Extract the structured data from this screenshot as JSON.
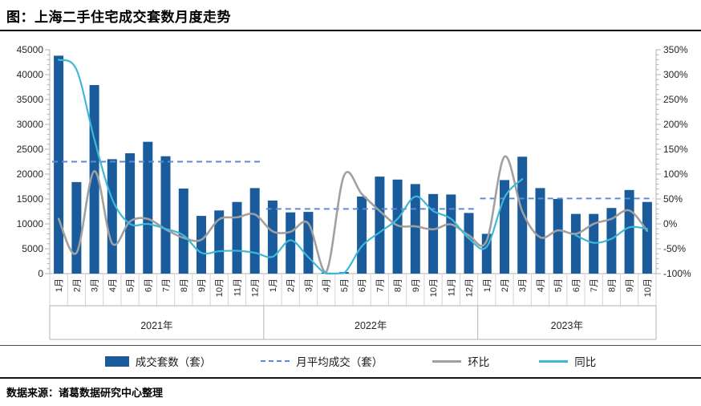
{
  "title": "图：上海二手住宅成交套数月度走势",
  "source": "数据来源：诸葛数据研究中心整理",
  "colors": {
    "bar": "#1a5b9c",
    "avg_dash": "#5b8ad9",
    "mom_line": "#a0a0a0",
    "yoy_line": "#3fb8d8",
    "axis": "#b3b3b3",
    "divider": "#d4d4d4",
    "tick_text": "#262626"
  },
  "chart_data": {
    "type": "bar+line combo",
    "left_axis": {
      "min": 0,
      "max": 45000,
      "step": 5000,
      "minor_step": 1000,
      "tick_labels": [
        "0",
        "5000",
        "10000",
        "15000",
        "20000",
        "25000",
        "30000",
        "35000",
        "40000",
        "45000"
      ]
    },
    "right_axis": {
      "min": -100,
      "max": 350,
      "step": 50,
      "minor_step": 10,
      "tick_labels": [
        "-100%",
        "-50%",
        "0%",
        "50%",
        "100%",
        "150%",
        "200%",
        "250%",
        "300%",
        "350%"
      ]
    },
    "series": {
      "bars": {
        "name": "成交套数（套）",
        "color": "#1a5b9c"
      },
      "avg": {
        "name": "月平均成交（套）",
        "color": "#5b8ad9",
        "style": "dashed"
      },
      "mom": {
        "name": "环比",
        "color": "#a0a0a0"
      },
      "yoy": {
        "name": "同比",
        "color": "#3fb8d8"
      }
    },
    "groups": [
      {
        "year": "2021年",
        "months": [
          "1月",
          "2月",
          "3月",
          "4月",
          "5月",
          "6月",
          "7月",
          "8月",
          "9月",
          "10月",
          "11月",
          "12月"
        ],
        "volume": [
          43800,
          18400,
          37900,
          23000,
          24200,
          26500,
          23600,
          17100,
          11600,
          12700,
          14400,
          17200
        ],
        "monthly_avg": 22500,
        "mom_pct": [
          10,
          -58,
          106,
          -39,
          5,
          10,
          -11,
          -28,
          -32,
          9,
          13,
          19
        ],
        "yoy_pct": [
          330,
          310,
          170,
          50,
          0,
          0,
          -10,
          -23,
          -58,
          -55,
          -54,
          -58
        ]
      },
      {
        "year": "2022年",
        "months": [
          "1月",
          "2月",
          "3月",
          "4月",
          "5月",
          "6月",
          "7月",
          "8月",
          "9月",
          "10月",
          "11月",
          "12月"
        ],
        "volume": [
          14700,
          12300,
          12400,
          200,
          300,
          15500,
          19500,
          18900,
          18000,
          16000,
          15900,
          12200
        ],
        "monthly_avg": 13000,
        "mom_pct": [
          -15,
          -16,
          1,
          -97,
          97,
          60,
          26,
          -3,
          -5,
          -11,
          -1,
          -23
        ],
        "yoy_pct": [
          -66,
          -33,
          -67,
          -100,
          -99,
          -45,
          -17,
          10,
          55,
          26,
          10,
          -29
        ]
      },
      {
        "year": "2023年",
        "months": [
          "1月",
          "2月",
          "3月",
          "4月",
          "5月",
          "6月",
          "7月",
          "8月",
          "9月",
          "10月"
        ],
        "volume": [
          8000,
          18800,
          23500,
          17200,
          15000,
          12000,
          12000,
          13200,
          16800,
          14400
        ],
        "monthly_avg": 15100,
        "mom_pct": [
          -34,
          135,
          25,
          -27,
          -13,
          -20,
          0,
          10,
          27,
          -14
        ],
        "yoy_pct": [
          -46,
          53,
          90,
          null,
          null,
          -23,
          -38,
          -30,
          -7,
          -10
        ]
      }
    ]
  }
}
